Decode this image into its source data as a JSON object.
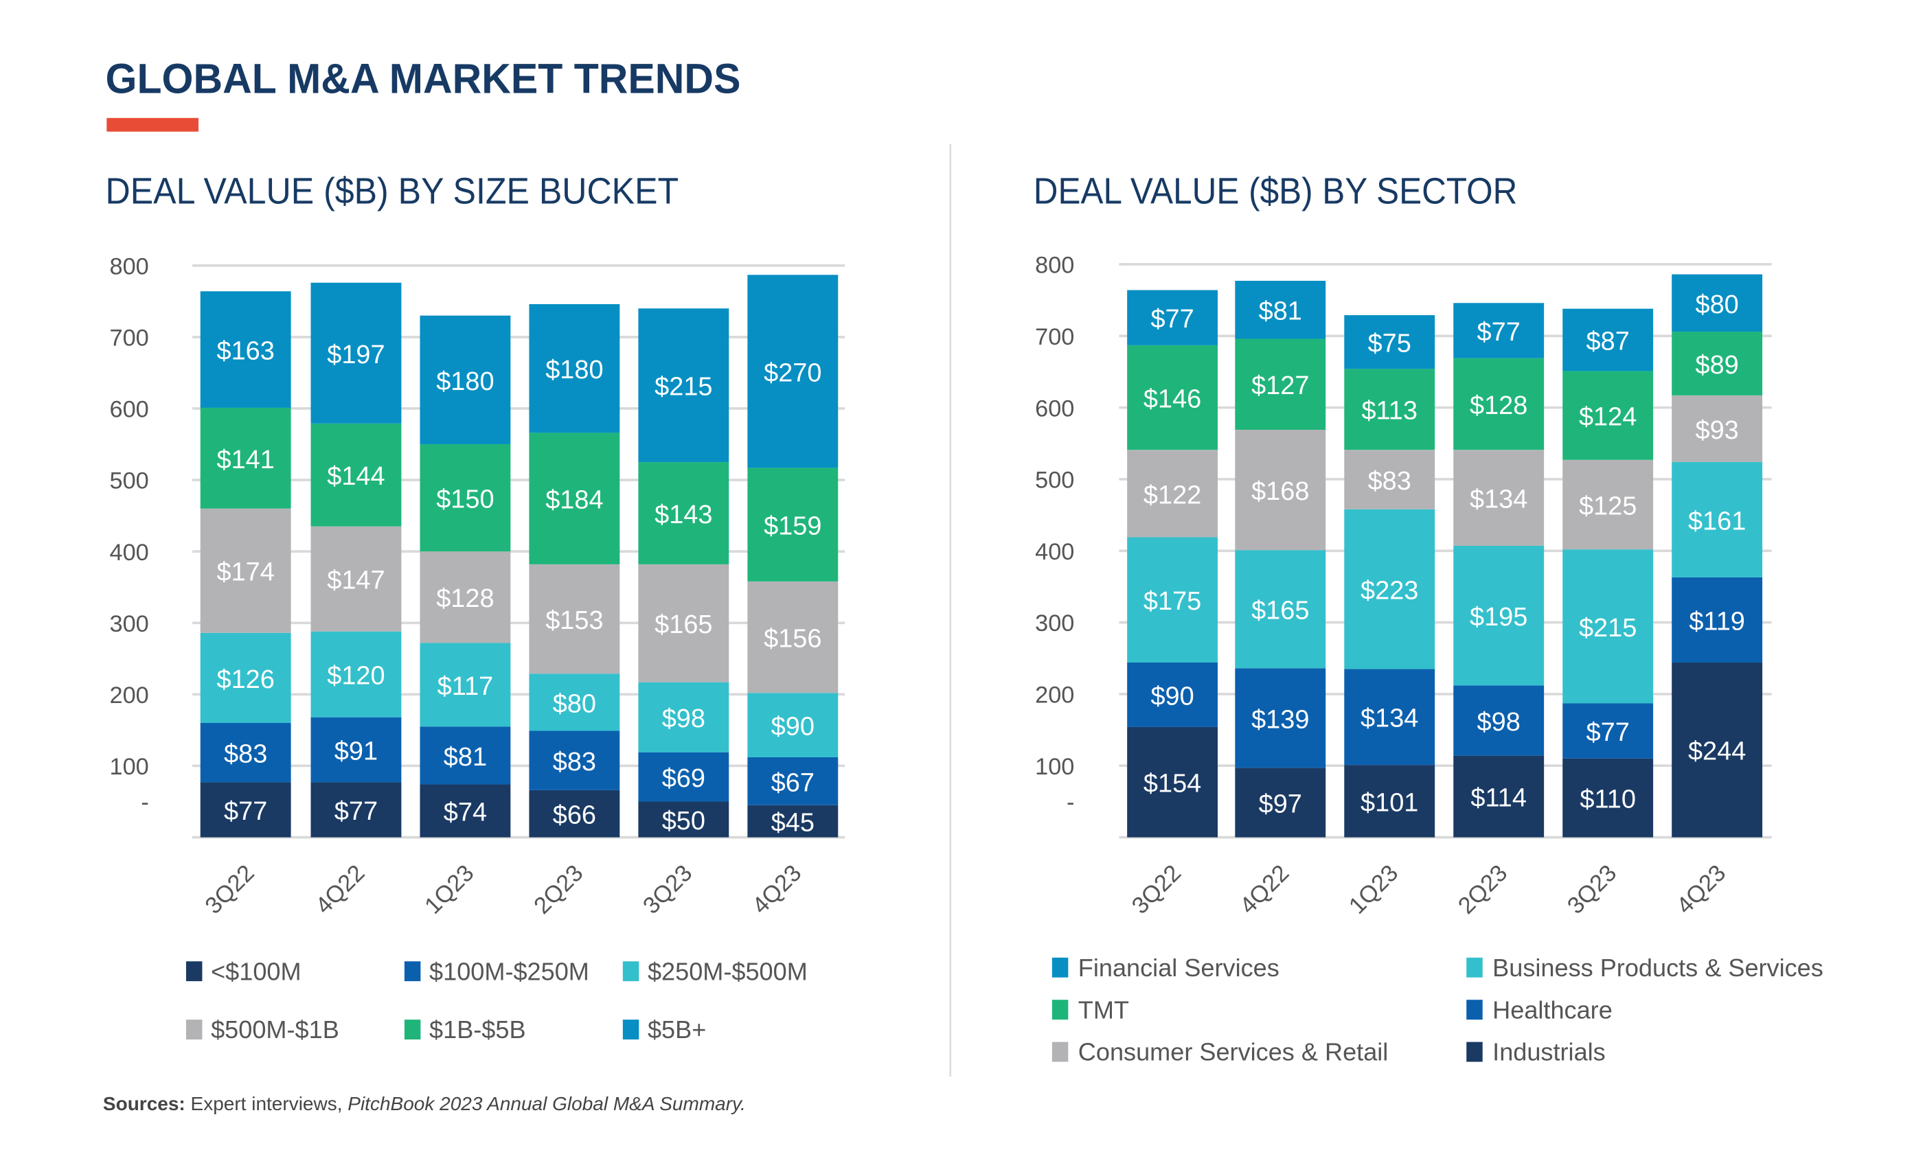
{
  "title": "GLOBAL M&A MARKET TRENDS",
  "accent_color": "#e84c37",
  "source": {
    "label": "Sources:",
    "text": " Expert interviews, ",
    "italic": "PitchBook 2023 Annual Global M&A Summary."
  },
  "chart_data": [
    {
      "type": "bar",
      "stacked": true,
      "title": "DEAL VALUE ($B) BY SIZE BUCKET",
      "categories": [
        "3Q22",
        "4Q22",
        "1Q23",
        "2Q23",
        "3Q23",
        "4Q23"
      ],
      "ylim": [
        0,
        800
      ],
      "yticks": [
        "-",
        "100",
        "200",
        "300",
        "400",
        "500",
        "600",
        "700",
        "800"
      ],
      "grid": true,
      "legend_placement": "bottom",
      "series": [
        {
          "name": "<$100M",
          "color": "#1a3a64",
          "values": [
            77,
            77,
            74,
            66,
            50,
            45
          ]
        },
        {
          "name": "$100M-$250M",
          "color": "#0b60ae",
          "values": [
            83,
            91,
            81,
            83,
            69,
            67
          ]
        },
        {
          "name": "$250M-$500M",
          "color": "#33c0cc",
          "values": [
            126,
            120,
            117,
            80,
            98,
            90
          ]
        },
        {
          "name": "$500M-$1B",
          "color": "#b3b3b6",
          "values": [
            174,
            147,
            128,
            153,
            165,
            156
          ]
        },
        {
          "name": "$1B-$5B",
          "color": "#1fb57a",
          "values": [
            141,
            144,
            150,
            184,
            143,
            159
          ]
        },
        {
          "name": "$5B+",
          "color": "#078fc3",
          "values": [
            163,
            197,
            180,
            180,
            215,
            270
          ]
        }
      ]
    },
    {
      "type": "bar",
      "stacked": true,
      "title": "DEAL VALUE ($B) BY SECTOR",
      "categories": [
        "3Q22",
        "4Q22",
        "1Q23",
        "2Q23",
        "3Q23",
        "4Q23"
      ],
      "ylim": [
        0,
        800
      ],
      "yticks": [
        "-",
        "100",
        "200",
        "300",
        "400",
        "500",
        "600",
        "700",
        "800"
      ],
      "grid": true,
      "legend_placement": "bottom",
      "series": [
        {
          "name": "Industrials",
          "color": "#1a3a64",
          "values": [
            154,
            97,
            101,
            114,
            110,
            244
          ]
        },
        {
          "name": "Healthcare",
          "color": "#0b60ae",
          "values": [
            90,
            139,
            134,
            98,
            77,
            119
          ]
        },
        {
          "name": "Business Products & Services",
          "color": "#33c0cc",
          "values": [
            175,
            165,
            223,
            195,
            215,
            161
          ]
        },
        {
          "name": "Consumer Services & Retail",
          "color": "#b3b3b6",
          "values": [
            122,
            168,
            83,
            134,
            125,
            93
          ]
        },
        {
          "name": "TMT",
          "color": "#1fb57a",
          "values": [
            146,
            127,
            113,
            128,
            124,
            89
          ]
        },
        {
          "name": "Financial Services",
          "color": "#078fc3",
          "values": [
            77,
            81,
            75,
            77,
            87,
            80
          ]
        }
      ]
    }
  ]
}
